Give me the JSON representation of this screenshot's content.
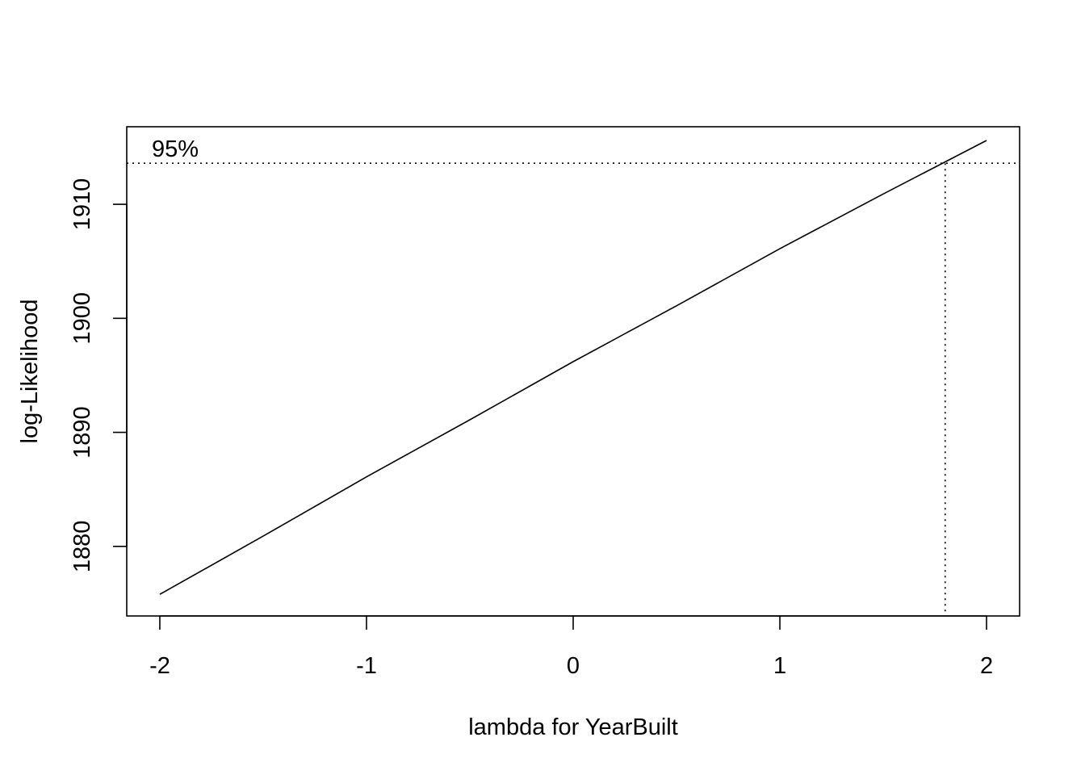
{
  "chart_data": {
    "type": "line",
    "title": "",
    "xlabel": "lambda for YearBuilt",
    "ylabel": "log-Likelihood",
    "xlim": [
      -2.16,
      2.16
    ],
    "ylim": [
      1873.9,
      1916.8
    ],
    "x_ticks": [
      -2,
      -1,
      0,
      1,
      2
    ],
    "x_tick_labels": [
      "-2",
      "-1",
      "0",
      "1",
      "2"
    ],
    "y_ticks": [
      1880,
      1890,
      1900,
      1910
    ],
    "y_tick_labels": [
      "1880",
      "1890",
      "1900",
      "1910"
    ],
    "grid": false,
    "series": [
      {
        "x": [
          -2,
          -1.5,
          -1,
          -0.5,
          0,
          0.5,
          1,
          1.5,
          2
        ],
        "y": [
          1875.8,
          1880.9,
          1886.1,
          1891.1,
          1896.2,
          1901.1,
          1906.1,
          1910.9,
          1915.6
        ],
        "color": "#000000"
      }
    ],
    "ci_threshold": 1913.6,
    "ci_threshold_label": "95%",
    "ci_bounds": [
      1.8
    ],
    "line_color": "#000000"
  }
}
